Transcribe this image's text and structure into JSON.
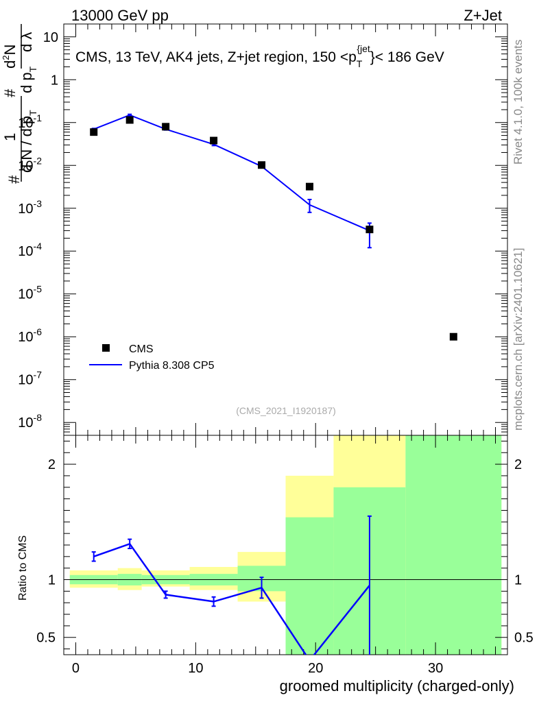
{
  "header": {
    "left": "13000 GeV pp",
    "right": "Z+Jet"
  },
  "side_labels": {
    "rivet": "Rivet 4.1.0,  100k events",
    "mcplots": "mcplots.cern.ch [arXiv:2401.10621]"
  },
  "chart_data": [
    {
      "type": "line",
      "title": "CMS, 13 TeV, AK4 jets, Z+jet region, 150 <p_T^{jet}< 186 GeV",
      "title_parts": {
        "prefix": "CMS, 13 TeV, AK4 jets, Z+jet region, 150 <p",
        "sub": "T",
        "sup": "{jet",
        "suffix": "}< 186 GeV"
      },
      "watermark": "(CMS_2021_I1920187)",
      "yscale": "log",
      "ylim": [
        5e-09,
        20
      ],
      "xlim": [
        -1,
        36
      ],
      "yticks": [
        {
          "value": 1e-08,
          "label": "10",
          "exp": "-8"
        },
        {
          "value": 1e-07,
          "label": "10",
          "exp": "-7"
        },
        {
          "value": 1e-06,
          "label": "10",
          "exp": "-6"
        },
        {
          "value": 1e-05,
          "label": "10",
          "exp": "-5"
        },
        {
          "value": 0.0001,
          "label": "10",
          "exp": "-4"
        },
        {
          "value": 0.001,
          "label": "10",
          "exp": "-3"
        },
        {
          "value": 0.01,
          "label": "10",
          "exp": "-2"
        },
        {
          "value": 0.1,
          "label": "10",
          "exp": "-1"
        },
        {
          "value": 1,
          "label": "1",
          "exp": ""
        },
        {
          "value": 10,
          "label": "10",
          "exp": ""
        }
      ],
      "ylabel_parts": [
        "#",
        "1",
        "d N / d p",
        "T",
        "#",
        "d p",
        "T",
        "d",
        "2",
        "N",
        "d λ"
      ],
      "legend": {
        "position": "bottom-left",
        "entries": [
          {
            "name": "CMS",
            "marker": "square",
            "color": "#000000"
          },
          {
            "name": "Pythia 8.308 CP5",
            "marker": "line",
            "color": "#0000ff"
          }
        ]
      },
      "series": [
        {
          "name": "CMS",
          "x": [
            1.5,
            4.5,
            7.5,
            11.5,
            15.5,
            19.5,
            24.5,
            31.5
          ],
          "y": [
            0.06,
            0.115,
            0.08,
            0.038,
            0.0102,
            0.0032,
            0.00032,
            1e-06
          ]
        },
        {
          "name": "Pythia 8.308 CP5",
          "x": [
            1.5,
            4.5,
            7.5,
            11.5,
            15.5,
            19.5,
            24.5
          ],
          "y": [
            0.07,
            0.15,
            0.07,
            0.031,
            0.0095,
            0.0012,
            0.0003
          ],
          "yerr_low": [
            0.003,
            0.006,
            0.003,
            0.002,
            0.0006,
            0.0004,
            0.00018
          ],
          "yerr_high": [
            0.003,
            0.006,
            0.003,
            0.002,
            0.0006,
            0.0004,
            0.00015
          ]
        }
      ]
    },
    {
      "type": "line",
      "ylabel": "Ratio to CMS",
      "xlabel": "groomed multiplicity (charged-only)",
      "ylim": [
        0.35,
        2.25
      ],
      "xlim": [
        -1,
        36
      ],
      "xticks": [
        0,
        10,
        20,
        30
      ],
      "yticks": [
        {
          "value": 0.5,
          "label": "0.5"
        },
        {
          "value": 1,
          "label": "1"
        },
        {
          "value": 2,
          "label": "2"
        }
      ],
      "reference_line": 1,
      "bands": [
        {
          "x0": -0.5,
          "x1": 3.5,
          "yellow": [
            0.93,
            1.08
          ],
          "green": [
            0.96,
            1.04
          ]
        },
        {
          "x0": 3.5,
          "x1": 5.5,
          "yellow": [
            0.91,
            1.1
          ],
          "green": [
            0.95,
            1.05
          ]
        },
        {
          "x0": 5.5,
          "x1": 9.5,
          "yellow": [
            0.94,
            1.08
          ],
          "green": [
            0.96,
            1.04
          ]
        },
        {
          "x0": 9.5,
          "x1": 13.5,
          "yellow": [
            0.91,
            1.11
          ],
          "green": [
            0.95,
            1.05
          ]
        },
        {
          "x0": 13.5,
          "x1": 17.5,
          "yellow": [
            0.81,
            1.24
          ],
          "green": [
            0.9,
            1.12
          ]
        },
        {
          "x0": 17.5,
          "x1": 21.5,
          "yellow": [
            0.35,
            1.9
          ],
          "green": [
            0.35,
            1.54
          ]
        },
        {
          "x0": 21.5,
          "x1": 27.5,
          "yellow": [
            0.35,
            2.25
          ],
          "green": [
            0.35,
            1.8
          ]
        },
        {
          "x0": 27.5,
          "x1": 35.5,
          "yellow": [
            0.35,
            2.25
          ],
          "green": [
            0.35,
            2.25
          ]
        }
      ],
      "series": [
        {
          "name": "Pythia 8.308 CP5",
          "x": [
            1.5,
            4.5,
            7.5,
            11.5,
            15.5,
            19.5,
            24.5
          ],
          "y": [
            1.2,
            1.31,
            0.87,
            0.81,
            0.93,
            0.3,
            0.95
          ],
          "yerr_low": [
            0.04,
            0.04,
            0.03,
            0.04,
            0.09,
            0,
            0.6
          ],
          "yerr_high": [
            0.04,
            0.04,
            0.03,
            0.04,
            0.09,
            0,
            0.6
          ]
        }
      ]
    }
  ]
}
